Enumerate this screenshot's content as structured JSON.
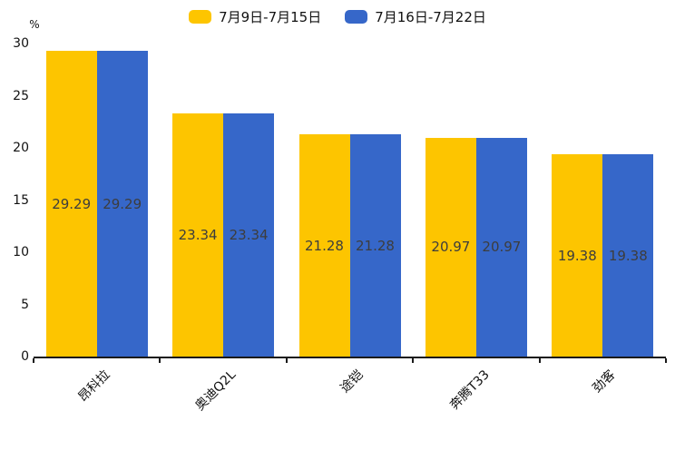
{
  "chart_data": {
    "type": "bar",
    "title": "",
    "unit_label": "%",
    "categories": [
      "昂科拉",
      "奥迪Q2L",
      "途铠",
      "奔腾T33",
      "劲客"
    ],
    "series": [
      {
        "name": "7月9日-7月15日",
        "color": "#FDC500",
        "values": [
          29.29,
          23.34,
          21.28,
          20.97,
          19.38
        ]
      },
      {
        "name": "7月16日-7月22日",
        "color": "#3667C9",
        "values": [
          29.29,
          23.34,
          21.28,
          20.97,
          19.38
        ]
      }
    ],
    "ylim": [
      0,
      30
    ],
    "yticks": [
      0,
      5,
      10,
      15,
      20,
      25,
      30
    ],
    "grid": false,
    "legend_position": "top-center",
    "value_labels": "inside-middle",
    "value_label_decimals": 2,
    "xtick_rotation": 45
  },
  "colors": {
    "axis_line": "#1a1a1a",
    "tick_text": "#111111",
    "value_text": "#3d3d3d",
    "background": "#ffffff"
  }
}
